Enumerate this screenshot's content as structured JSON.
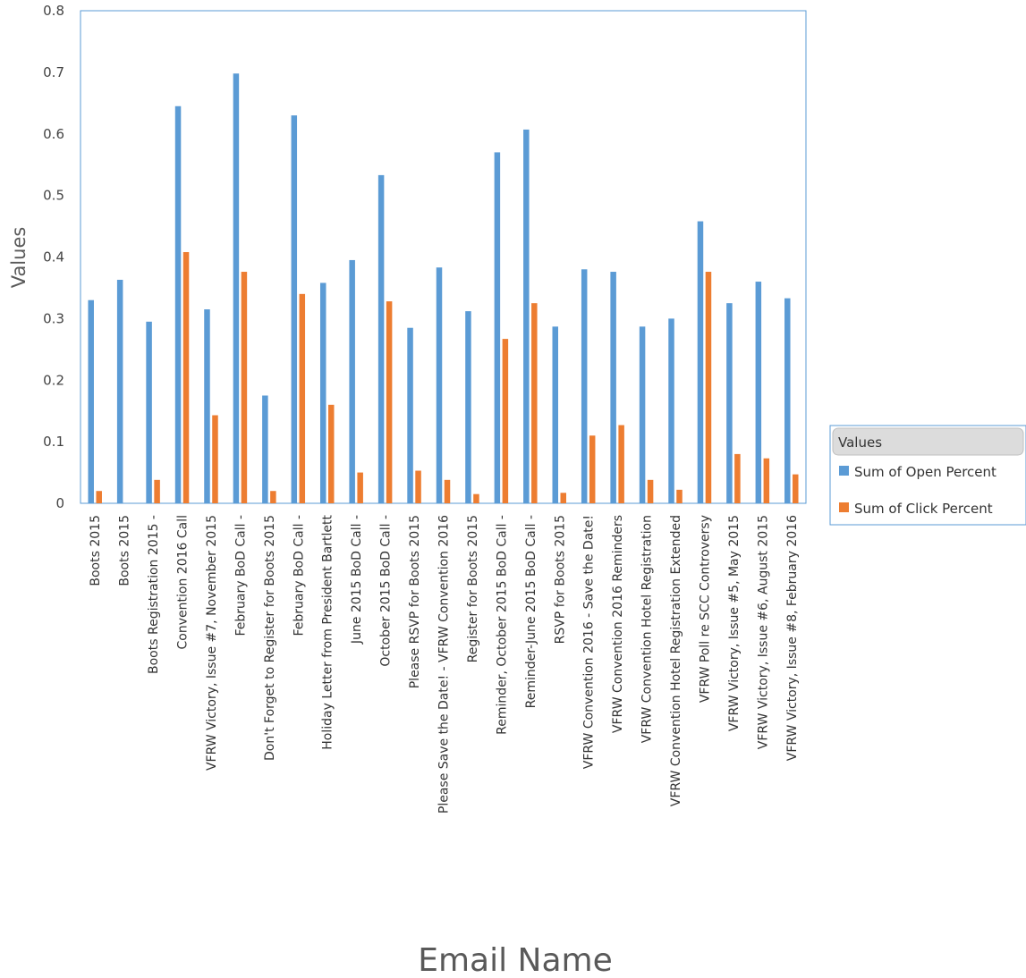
{
  "chart_data": {
    "type": "bar",
    "title": "",
    "xlabel": "Email Name",
    "ylabel": "Values",
    "ylim": [
      0,
      0.8
    ],
    "yticks": [
      "0",
      "0.1",
      "0.2",
      "0.3",
      "0.4",
      "0.5",
      "0.6",
      "0.7",
      "0.8"
    ],
    "grid": false,
    "legend_position": "right",
    "legend_title": "Values",
    "categories": [
      "Boots 2015",
      "Boots 2015",
      "Boots Registration 2015 -",
      "Convention 2016 Call",
      "VFRW Victory, Issue #7, November 2015",
      "February  BoD Call -",
      "Don't Forget to Register for Boots 2015",
      "February  BoD Call -",
      "Holiday Letter from President Bartlett",
      "June 2015 BoD Call -",
      "October 2015 BoD Call -",
      "Please RSVP for Boots 2015",
      "Please Save the Date! - VFRW Convention 2016",
      "Register for Boots 2015",
      "Reminder, October 2015 BoD Call -",
      "Reminder-June 2015 BoD Call -",
      "RSVP for Boots 2015",
      "VFRW Convention 2016 - Save the Date!",
      "VFRW Convention 2016 Reminders",
      "VFRW Convention Hotel Registration",
      "VFRW Convention Hotel Registration Extended",
      "VFRW Poll re SCC Controversy",
      "VFRW Victory, Issue #5, May 2015",
      "VFRW Victory, Issue #6, August 2015",
      "VFRW Victory, Issue #8, February 2016"
    ],
    "series": [
      {
        "name": "Sum of Open Percent",
        "color": "#5B9BD5",
        "values": [
          0.33,
          0.363,
          0.295,
          0.645,
          0.315,
          0.698,
          0.175,
          0.63,
          0.358,
          0.395,
          0.533,
          0.285,
          0.383,
          0.312,
          0.57,
          0.607,
          0.287,
          0.38,
          0.376,
          0.287,
          0.3,
          0.458,
          0.325,
          0.36,
          0.333
        ]
      },
      {
        "name": "Sum of Click Percent",
        "color": "#ED7D31",
        "values": [
          0.02,
          0.0,
          0.038,
          0.408,
          0.143,
          0.376,
          0.02,
          0.34,
          0.16,
          0.05,
          0.328,
          0.053,
          0.038,
          0.015,
          0.267,
          0.325,
          0.017,
          0.11,
          0.127,
          0.038,
          0.022,
          0.376,
          0.08,
          0.073,
          0.047
        ]
      }
    ]
  }
}
